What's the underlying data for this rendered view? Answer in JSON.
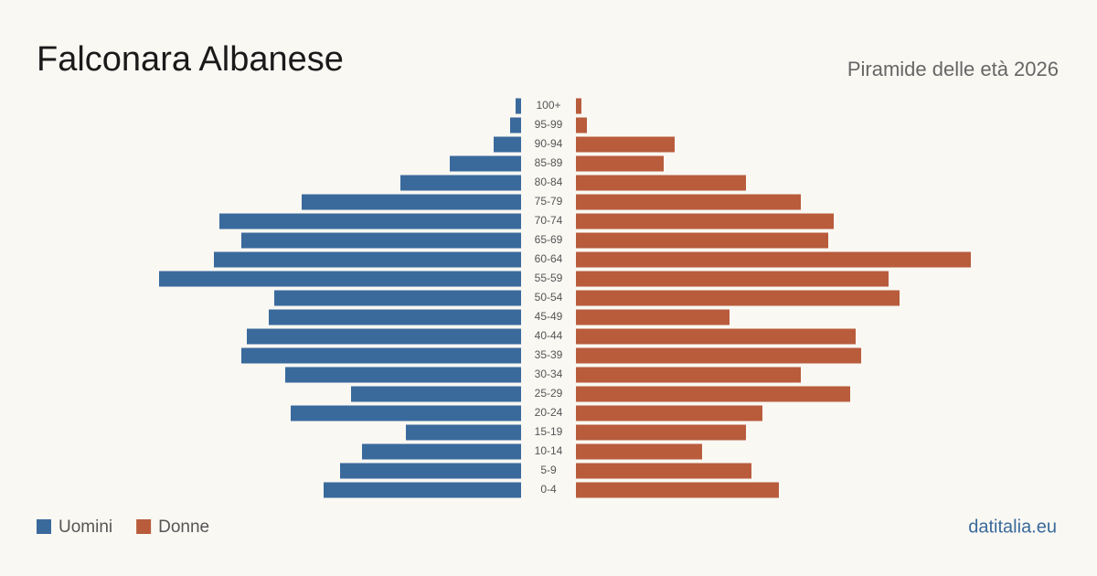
{
  "chart_data": {
    "type": "pyramid",
    "title": "Falconara Albanese",
    "subtitle": "Piramide delle età 2026",
    "source": "datitalia.eu",
    "categories": [
      "100+",
      "95-99",
      "90-94",
      "85-89",
      "80-84",
      "75-79",
      "70-74",
      "65-69",
      "60-64",
      "55-59",
      "50-54",
      "45-49",
      "40-44",
      "35-39",
      "30-34",
      "25-29",
      "20-24",
      "15-19",
      "10-14",
      "5-9",
      "0-4"
    ],
    "series": [
      {
        "name": "Uomini",
        "color": "#3a6a9c",
        "values": [
          1,
          2,
          5,
          13,
          22,
          40,
          55,
          51,
          56,
          66,
          45,
          46,
          50,
          51,
          43,
          31,
          42,
          21,
          29,
          33,
          36
        ]
      },
      {
        "name": "Donne",
        "color": "#b85c3c",
        "values": [
          1,
          2,
          18,
          16,
          31,
          41,
          47,
          46,
          72,
          57,
          59,
          28,
          51,
          52,
          41,
          50,
          34,
          31,
          23,
          32,
          37
        ]
      }
    ],
    "xlim": [
      0,
      80
    ]
  }
}
